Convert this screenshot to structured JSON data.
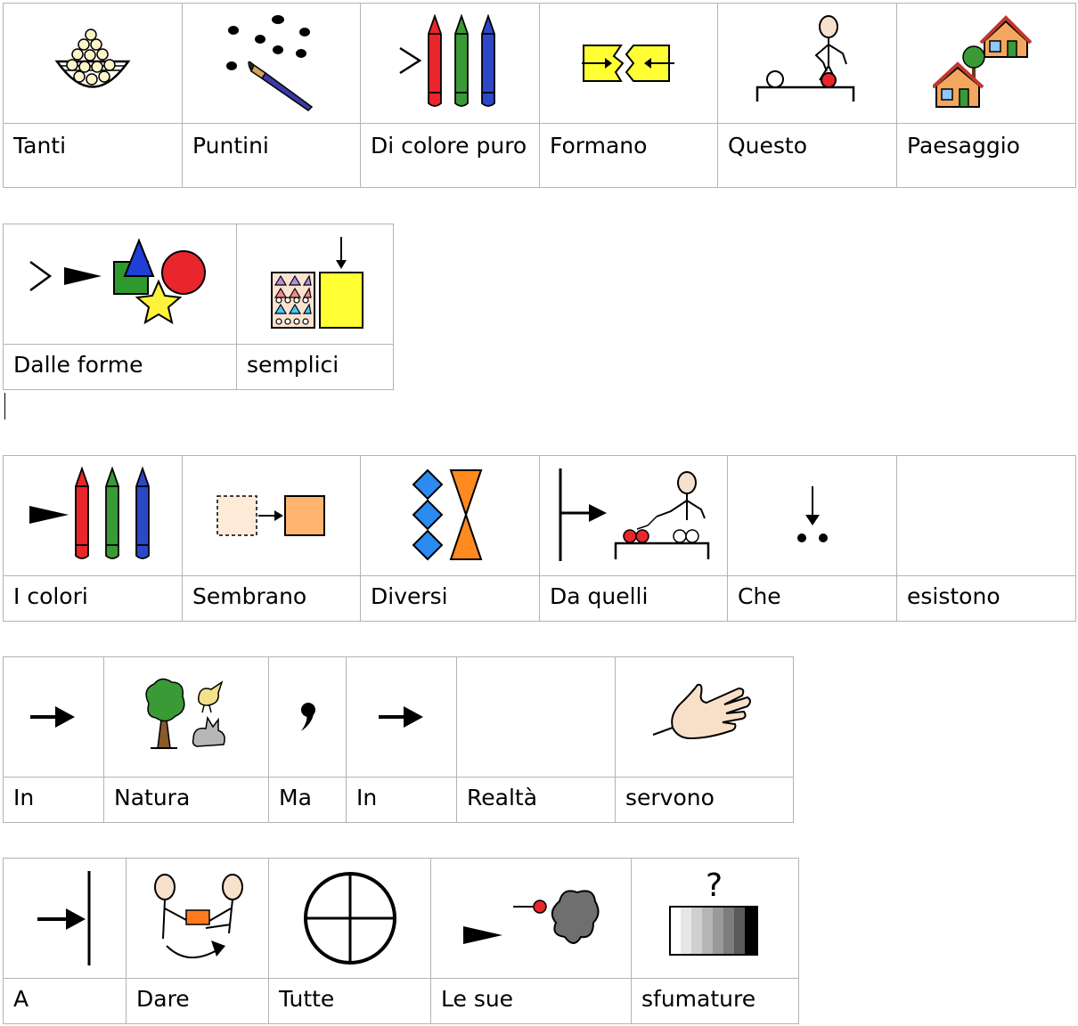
{
  "rows": [
    [
      "Tanti",
      "Puntini",
      "Di colore puro",
      "Formano",
      "Questo",
      "Paesaggio"
    ],
    [
      "Dalle forme",
      "semplici"
    ],
    [
      "I colori",
      "Sembrano",
      "Diversi",
      "Da quelli",
      "Che",
      "esistono"
    ],
    [
      "In",
      "Natura",
      "Ma",
      "In",
      "Realtà",
      "servono"
    ],
    [
      "A",
      "Dare",
      "Tutte",
      "Le sue",
      "sfumature"
    ]
  ],
  "icons": [
    [
      "bowl-of-beads-icon",
      "dots-and-paintbrush-icon",
      "three-crayons-icon",
      "puzzle-pieces-joining-icon",
      "person-pointing-at-object-icon",
      "houses-and-tree-icon"
    ],
    [
      "shapes-icon",
      "pattern-and-plain-icon"
    ],
    [
      "crayons-icon",
      "seems-squares-icon",
      "different-shapes-icon",
      "from-those-icon",
      "that-dots-icon",
      "blank-icon"
    ],
    [
      "arrow-right-icon",
      "nature-tree-animals-icon",
      "comma-icon",
      "arrow-right-icon",
      "blank-icon",
      "hand-icon"
    ],
    [
      "arrow-to-bar-icon",
      "giving-people-icon",
      "circle-quartered-icon",
      "possessive-blob-icon",
      "grayscale-gradient-icon"
    ]
  ]
}
